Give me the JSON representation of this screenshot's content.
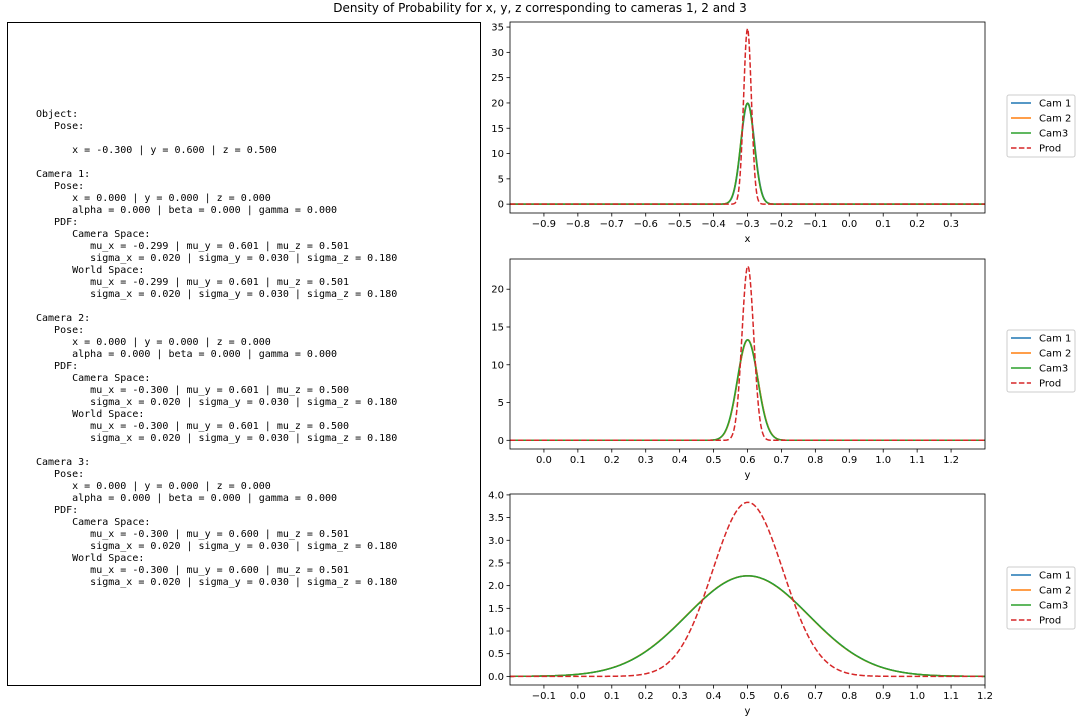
{
  "figure": {
    "title": "Density of Probability for x, y, z corresponding to cameras 1, 2 and 3"
  },
  "info_panel": {
    "lines": [
      "Object:",
      "   Pose:",
      "",
      "      x = -0.300 | y = 0.600 | z = 0.500",
      "",
      "Camera 1:",
      "   Pose:",
      "      x = 0.000 | y = 0.000 | z = 0.000",
      "      alpha = 0.000 | beta = 0.000 | gamma = 0.000",
      "   PDF:",
      "      Camera Space:",
      "         mu_x = -0.299 | mu_y = 0.601 | mu_z = 0.501",
      "         sigma_x = 0.020 | sigma_y = 0.030 | sigma_z = 0.180",
      "      World Space:",
      "         mu_x = -0.299 | mu_y = 0.601 | mu_z = 0.501",
      "         sigma_x = 0.020 | sigma_y = 0.030 | sigma_z = 0.180",
      "",
      "Camera 2:",
      "   Pose:",
      "      x = 0.000 | y = 0.000 | z = 0.000",
      "      alpha = 0.000 | beta = 0.000 | gamma = 0.000",
      "   PDF:",
      "      Camera Space:",
      "         mu_x = -0.300 | mu_y = 0.601 | mu_z = 0.500",
      "         sigma_x = 0.020 | sigma_y = 0.030 | sigma_z = 0.180",
      "      World Space:",
      "         mu_x = -0.300 | mu_y = 0.601 | mu_z = 0.500",
      "         sigma_x = 0.020 | sigma_y = 0.030 | sigma_z = 0.180",
      "",
      "Camera 3:",
      "   Pose:",
      "      x = 0.000 | y = 0.000 | z = 0.000",
      "      alpha = 0.000 | beta = 0.000 | gamma = 0.000",
      "   PDF:",
      "      Camera Space:",
      "         mu_x = -0.300 | mu_y = 0.600 | mu_z = 0.501",
      "         sigma_x = 0.020 | sigma_y = 0.030 | sigma_z = 0.180",
      "      World Space:",
      "         mu_x = -0.300 | mu_y = 0.600 | mu_z = 0.501",
      "         sigma_x = 0.020 | sigma_y = 0.030 | sigma_z = 0.180"
    ]
  },
  "chart_data": [
    {
      "type": "line",
      "xlabel": "x",
      "ylabel": "",
      "xlim": [
        -1.0,
        0.4
      ],
      "ylim": [
        -1.75,
        36
      ],
      "xticks": [
        -0.9,
        -0.8,
        -0.7,
        -0.6,
        -0.5,
        -0.4,
        -0.3,
        -0.2,
        -0.1,
        0.0,
        0.1,
        0.2,
        0.3
      ],
      "xtick_labels": [
        "−0.9",
        "−0.8",
        "−0.7",
        "−0.6",
        "−0.5",
        "−0.4",
        "−0.3",
        "−0.2",
        "−0.1",
        "0.0",
        "0.1",
        "0.2",
        "0.3"
      ],
      "yticks": [
        0,
        5,
        10,
        15,
        20,
        25,
        30,
        35
      ],
      "ytick_labels": [
        "0",
        "5",
        "10",
        "15",
        "20",
        "25",
        "30",
        "35"
      ],
      "legend_position": "right",
      "series": [
        {
          "name": "Cam 1",
          "color": "#1f77b4",
          "style": "solid",
          "mu": -0.299,
          "sigma": 0.02
        },
        {
          "name": "Cam 2",
          "color": "#ff7f0e",
          "style": "solid",
          "mu": -0.3,
          "sigma": 0.02
        },
        {
          "name": "Cam3",
          "color": "#2ca02c",
          "style": "solid",
          "mu": -0.3,
          "sigma": 0.02
        },
        {
          "name": "Prod",
          "color": "#d62728",
          "style": "dashed",
          "mu": -0.3,
          "sigma": 0.0115
        }
      ]
    },
    {
      "type": "line",
      "xlabel": "y",
      "ylabel": "",
      "xlim": [
        -0.1,
        1.3
      ],
      "ylim": [
        -1.15,
        24
      ],
      "xticks": [
        0.0,
        0.1,
        0.2,
        0.3,
        0.4,
        0.5,
        0.6,
        0.7,
        0.8,
        0.9,
        1.0,
        1.1,
        1.2
      ],
      "xtick_labels": [
        "0.0",
        "0.1",
        "0.2",
        "0.3",
        "0.4",
        "0.5",
        "0.6",
        "0.7",
        "0.8",
        "0.9",
        "1.0",
        "1.1",
        "1.2"
      ],
      "yticks": [
        0,
        5,
        10,
        15,
        20
      ],
      "ytick_labels": [
        "0",
        "5",
        "10",
        "15",
        "20"
      ],
      "legend_position": "right",
      "series": [
        {
          "name": "Cam 1",
          "color": "#1f77b4",
          "style": "solid",
          "mu": 0.601,
          "sigma": 0.03
        },
        {
          "name": "Cam 2",
          "color": "#ff7f0e",
          "style": "solid",
          "mu": 0.601,
          "sigma": 0.03
        },
        {
          "name": "Cam3",
          "color": "#2ca02c",
          "style": "solid",
          "mu": 0.6,
          "sigma": 0.03
        },
        {
          "name": "Prod",
          "color": "#d62728",
          "style": "dashed",
          "mu": 0.601,
          "sigma": 0.0173
        }
      ]
    },
    {
      "type": "line",
      "xlabel": "y",
      "ylabel": "",
      "xlim": [
        -0.2,
        1.2
      ],
      "ylim": [
        -0.19,
        4.02
      ],
      "xticks": [
        -0.1,
        0.0,
        0.1,
        0.2,
        0.3,
        0.4,
        0.5,
        0.6,
        0.7,
        0.8,
        0.9,
        1.0,
        1.1,
        1.2
      ],
      "xtick_labels": [
        "−0.1",
        "0.0",
        "0.1",
        "0.2",
        "0.3",
        "0.4",
        "0.5",
        "0.6",
        "0.7",
        "0.8",
        "0.9",
        "1.0",
        "1.1",
        "1.2"
      ],
      "yticks": [
        0.0,
        0.5,
        1.0,
        1.5,
        2.0,
        2.5,
        3.0,
        3.5,
        4.0
      ],
      "ytick_labels": [
        "0.0",
        "0.5",
        "1.0",
        "1.5",
        "2.0",
        "2.5",
        "3.0",
        "3.5",
        "4.0"
      ],
      "legend_position": "right",
      "series": [
        {
          "name": "Cam 1",
          "color": "#1f77b4",
          "style": "solid",
          "mu": 0.501,
          "sigma": 0.18
        },
        {
          "name": "Cam 2",
          "color": "#ff7f0e",
          "style": "solid",
          "mu": 0.5,
          "sigma": 0.18
        },
        {
          "name": "Cam3",
          "color": "#2ca02c",
          "style": "solid",
          "mu": 0.501,
          "sigma": 0.18
        },
        {
          "name": "Prod",
          "color": "#d62728",
          "style": "dashed",
          "mu": 0.501,
          "sigma": 0.104
        }
      ]
    }
  ]
}
